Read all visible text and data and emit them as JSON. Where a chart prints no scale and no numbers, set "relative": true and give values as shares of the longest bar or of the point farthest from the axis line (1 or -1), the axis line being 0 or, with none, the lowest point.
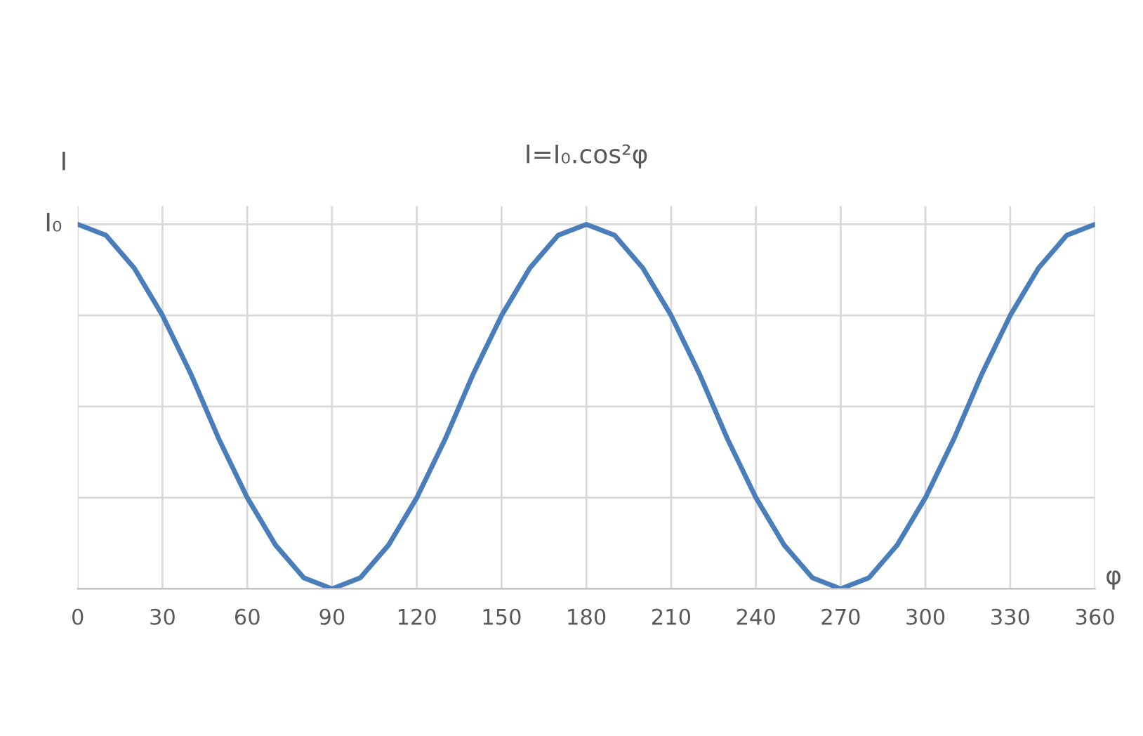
{
  "chart_data": {
    "type": "line",
    "title": "I=I₀.cos²φ",
    "xlabel": "φ",
    "ylabel": "I",
    "relative": true,
    "x": [
      0,
      10,
      20,
      30,
      40,
      50,
      60,
      70,
      80,
      90,
      100,
      110,
      120,
      130,
      140,
      150,
      160,
      170,
      180,
      190,
      200,
      210,
      220,
      230,
      240,
      250,
      260,
      270,
      280,
      290,
      300,
      310,
      320,
      330,
      340,
      350,
      360
    ],
    "series": [
      {
        "color": "#4a7ebb",
        "values": [
          1,
          0.97,
          0.88,
          0.75,
          0.59,
          0.41,
          0.25,
          0.12,
          0.03,
          0,
          0.03,
          0.12,
          0.25,
          0.41,
          0.59,
          0.75,
          0.88,
          0.97,
          1,
          0.97,
          0.88,
          0.75,
          0.59,
          0.41,
          0.25,
          0.12,
          0.03,
          0,
          0.03,
          0.12,
          0.25,
          0.41,
          0.59,
          0.75,
          0.88,
          0.97,
          1
        ]
      }
    ],
    "xlim": [
      0,
      360
    ],
    "xticks": [
      0,
      30,
      60,
      90,
      120,
      150,
      180,
      210,
      240,
      270,
      300,
      330,
      360
    ],
    "annotations": [
      {
        "text": "I₀",
        "x": 0,
        "y": 1
      }
    ],
    "grid": true,
    "legend": false,
    "marker": "none",
    "line_style": "solid"
  }
}
